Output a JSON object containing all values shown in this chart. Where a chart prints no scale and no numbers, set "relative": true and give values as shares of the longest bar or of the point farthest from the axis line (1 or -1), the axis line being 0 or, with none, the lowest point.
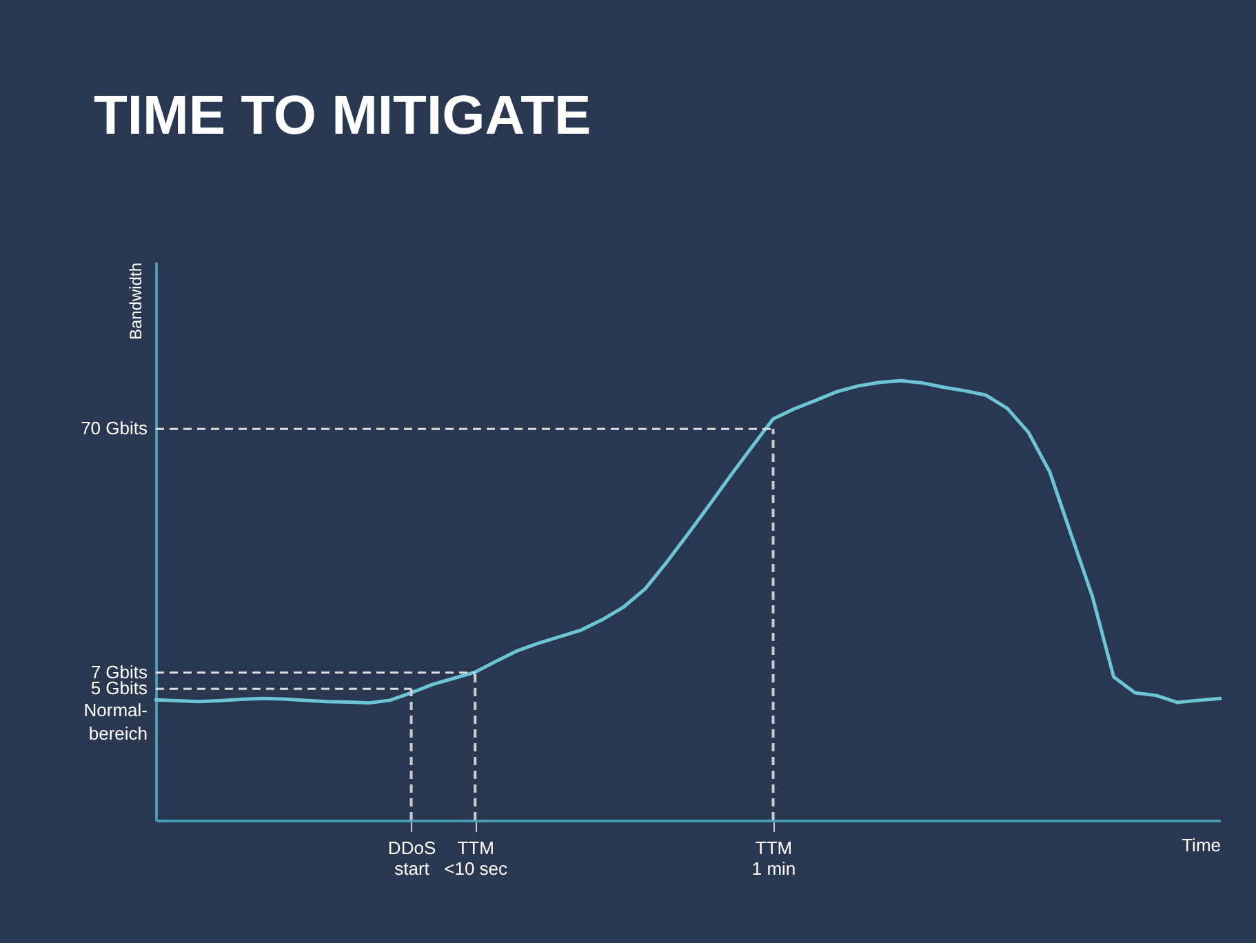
{
  "chart_data": {
    "type": "line",
    "title": "TIME TO MITIGATE",
    "xlabel": "Time",
    "ylabel": "Bandwidth",
    "relative": true,
    "categories": [
      null,
      null,
      null,
      null,
      null,
      null,
      null,
      null,
      null,
      null,
      null,
      null,
      "DDoS start",
      null,
      null,
      "TTM <10 sec",
      null,
      null,
      null,
      null,
      null,
      null,
      null,
      null,
      null,
      null,
      null,
      null,
      null,
      "TTM 1 min",
      null,
      null,
      null,
      null,
      null,
      null,
      null,
      null,
      null,
      null,
      null,
      null,
      null,
      null,
      null,
      null,
      null,
      null,
      null,
      null,
      null
    ],
    "series": [
      {
        "color": "#6cc4d4",
        "values": [
          0.274,
          0.272,
          0.27,
          0.272,
          0.275,
          0.277,
          0.276,
          0.273,
          0.27,
          0.269,
          0.267,
          0.273,
          0.29,
          0.309,
          0.323,
          0.337,
          0.362,
          0.386,
          0.403,
          0.418,
          0.433,
          0.457,
          0.486,
          0.527,
          0.587,
          0.651,
          0.717,
          0.784,
          0.849,
          0.913,
          0.936,
          0.955,
          0.975,
          0.988,
          0.996,
          1.0,
          0.995,
          0.985,
          0.977,
          0.967,
          0.937,
          0.882,
          0.792,
          0.65,
          0.509,
          0.326,
          0.29,
          0.284,
          0.268,
          0.273,
          0.277
        ]
      }
    ],
    "ref_lines": [
      {
        "axis": "y",
        "value": 0.299,
        "label": "5 Gbits",
        "color": "#dddddd",
        "line_style": "dashed"
      },
      {
        "axis": "y",
        "value": 0.336,
        "label": "7 Gbits",
        "color": "#dddddd",
        "line_style": "dashed"
      },
      {
        "axis": "y",
        "value": 0.89,
        "label": "70 Gbits",
        "color": "#dddddd",
        "line_style": "dashed"
      },
      {
        "axis": "x",
        "value": "DDoS start",
        "color": "#cccccc",
        "line_style": "dashed"
      },
      {
        "axis": "x",
        "value": "TTM <10 sec",
        "color": "#cccccc",
        "line_style": "dashed"
      },
      {
        "axis": "x",
        "value": "TTM 1 min",
        "color": "#cccccc",
        "line_style": "dashed"
      }
    ],
    "annotations": [
      "Normal-bereich"
    ],
    "line_style": "solid",
    "marker": "none"
  }
}
